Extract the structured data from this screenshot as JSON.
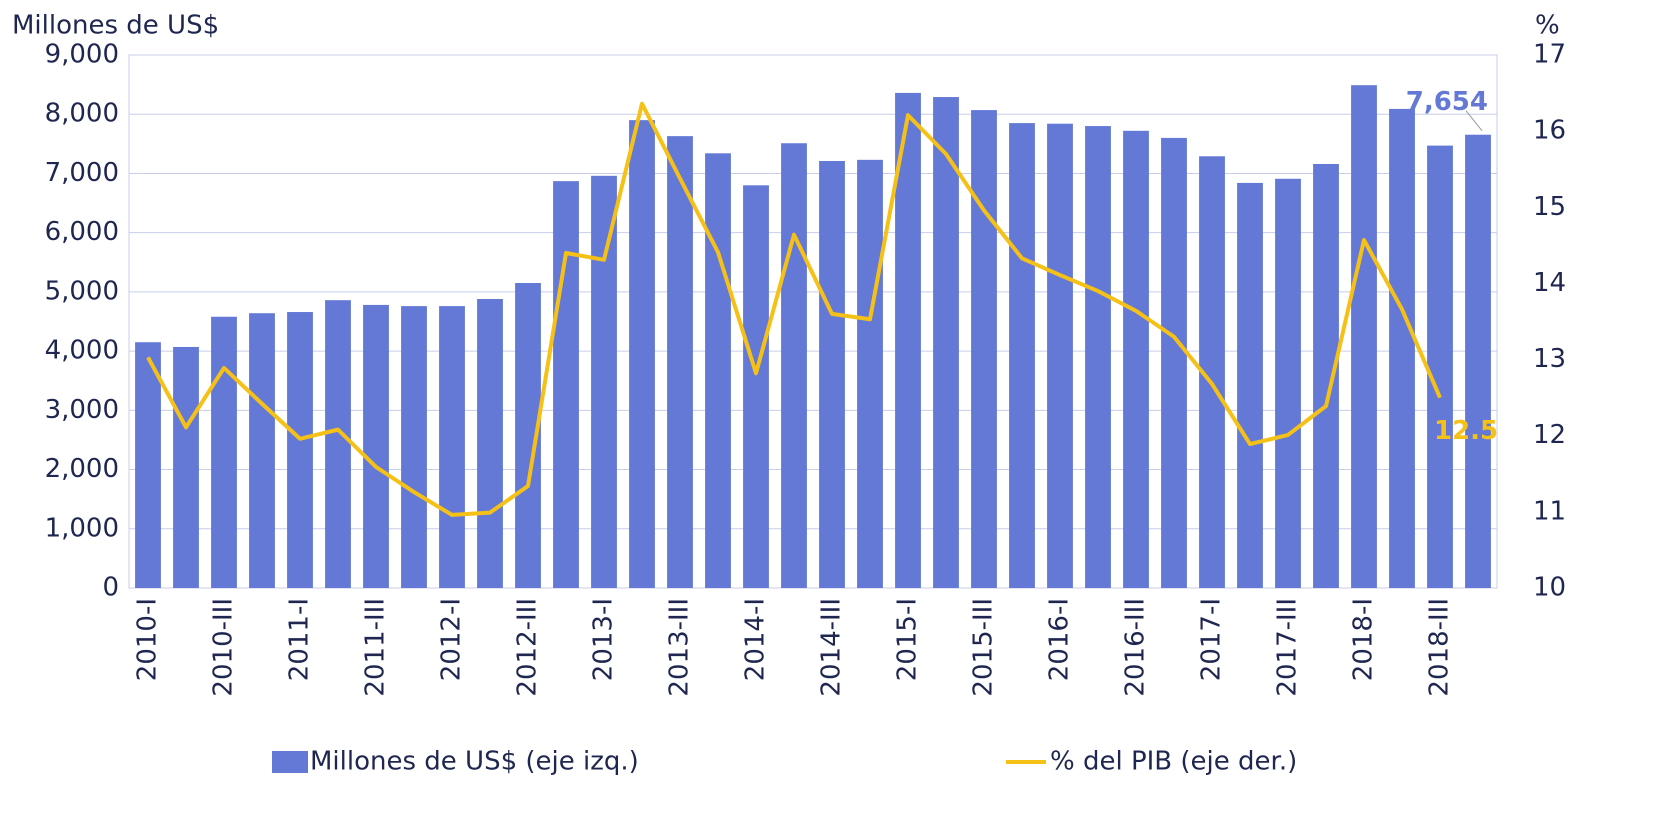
{
  "chart_data": {
    "type": "bar_line",
    "y_label": "Millones de US$",
    "y2_label": "%",
    "categories": [
      "2010-I",
      null,
      "2010-III",
      null,
      "2011-I",
      null,
      "2011-III",
      null,
      "2012-I",
      null,
      "2012-III",
      null,
      "2013-I",
      null,
      "2013-III",
      null,
      "2014-I",
      null,
      "2014-III",
      null,
      "2015-I",
      null,
      "2015-III",
      null,
      "2016-I",
      null,
      "2016-III",
      null,
      "2017-I",
      null,
      "2017-III",
      null,
      "2018-I",
      null,
      "2018-III",
      null
    ],
    "ylim": [
      0,
      9000
    ],
    "yticks": [
      0,
      {
        "value": 1000,
        "label": "1,000"
      },
      {
        "value": 2000,
        "label": "2,000"
      },
      {
        "value": 3000,
        "label": "3,000"
      },
      {
        "value": 4000,
        "label": "4,000"
      },
      {
        "value": 5000,
        "label": "5,000"
      },
      {
        "value": 6000,
        "label": "6,000"
      },
      {
        "value": 7000,
        "label": "7,000"
      },
      {
        "value": 8000,
        "label": "8,000"
      },
      {
        "value": 9000,
        "label": "9,000"
      }
    ],
    "y2lim": [
      10,
      17
    ],
    "y2ticks": [
      10,
      11,
      12,
      13,
      14,
      15,
      16,
      17
    ],
    "grid": true,
    "legend": "bottom",
    "series": [
      {
        "name": "Millones de US$ (eje izq.)",
        "type": "bar",
        "color": "#6479d6",
        "values": [
          4150,
          4070,
          4580,
          4640,
          4660,
          4860,
          4780,
          4760,
          4760,
          4880,
          5150,
          6870,
          6960,
          7900,
          7630,
          7340,
          6800,
          7510,
          7210,
          7230,
          8360,
          8290,
          8070,
          7850,
          7840,
          7800,
          7720,
          7600,
          7290,
          6840,
          6910,
          7160,
          8490,
          8090,
          7470,
          7654
        ],
        "value_labels": [
          null,
          null,
          null,
          null,
          null,
          null,
          null,
          null,
          null,
          null,
          null,
          null,
          null,
          null,
          null,
          null,
          null,
          null,
          null,
          null,
          null,
          null,
          null,
          null,
          null,
          null,
          null,
          null,
          null,
          null,
          null,
          null,
          null,
          null,
          null,
          "7,654"
        ]
      },
      {
        "name": "% del PIB (eje der.)",
        "type": "line",
        "axis": "y2",
        "color": "#f5c116",
        "values": [
          13.03,
          12.11,
          12.89,
          12.42,
          11.96,
          12.08,
          11.59,
          11.26,
          10.96,
          10.99,
          11.34,
          14.4,
          14.31,
          16.36,
          15.38,
          14.41,
          12.82,
          14.64,
          13.6,
          13.53,
          16.21,
          15.7,
          14.96,
          14.33,
          14.11,
          13.9,
          13.64,
          13.3,
          12.68,
          11.89,
          12.01,
          12.39,
          14.57,
          13.66,
          12.5,
          null
        ],
        "value_labels": [
          null,
          null,
          null,
          null,
          null,
          null,
          null,
          null,
          null,
          null,
          null,
          null,
          null,
          null,
          null,
          null,
          null,
          null,
          null,
          null,
          null,
          null,
          null,
          null,
          null,
          null,
          null,
          null,
          null,
          null,
          null,
          null,
          null,
          null,
          "12.5",
          null
        ]
      }
    ]
  }
}
